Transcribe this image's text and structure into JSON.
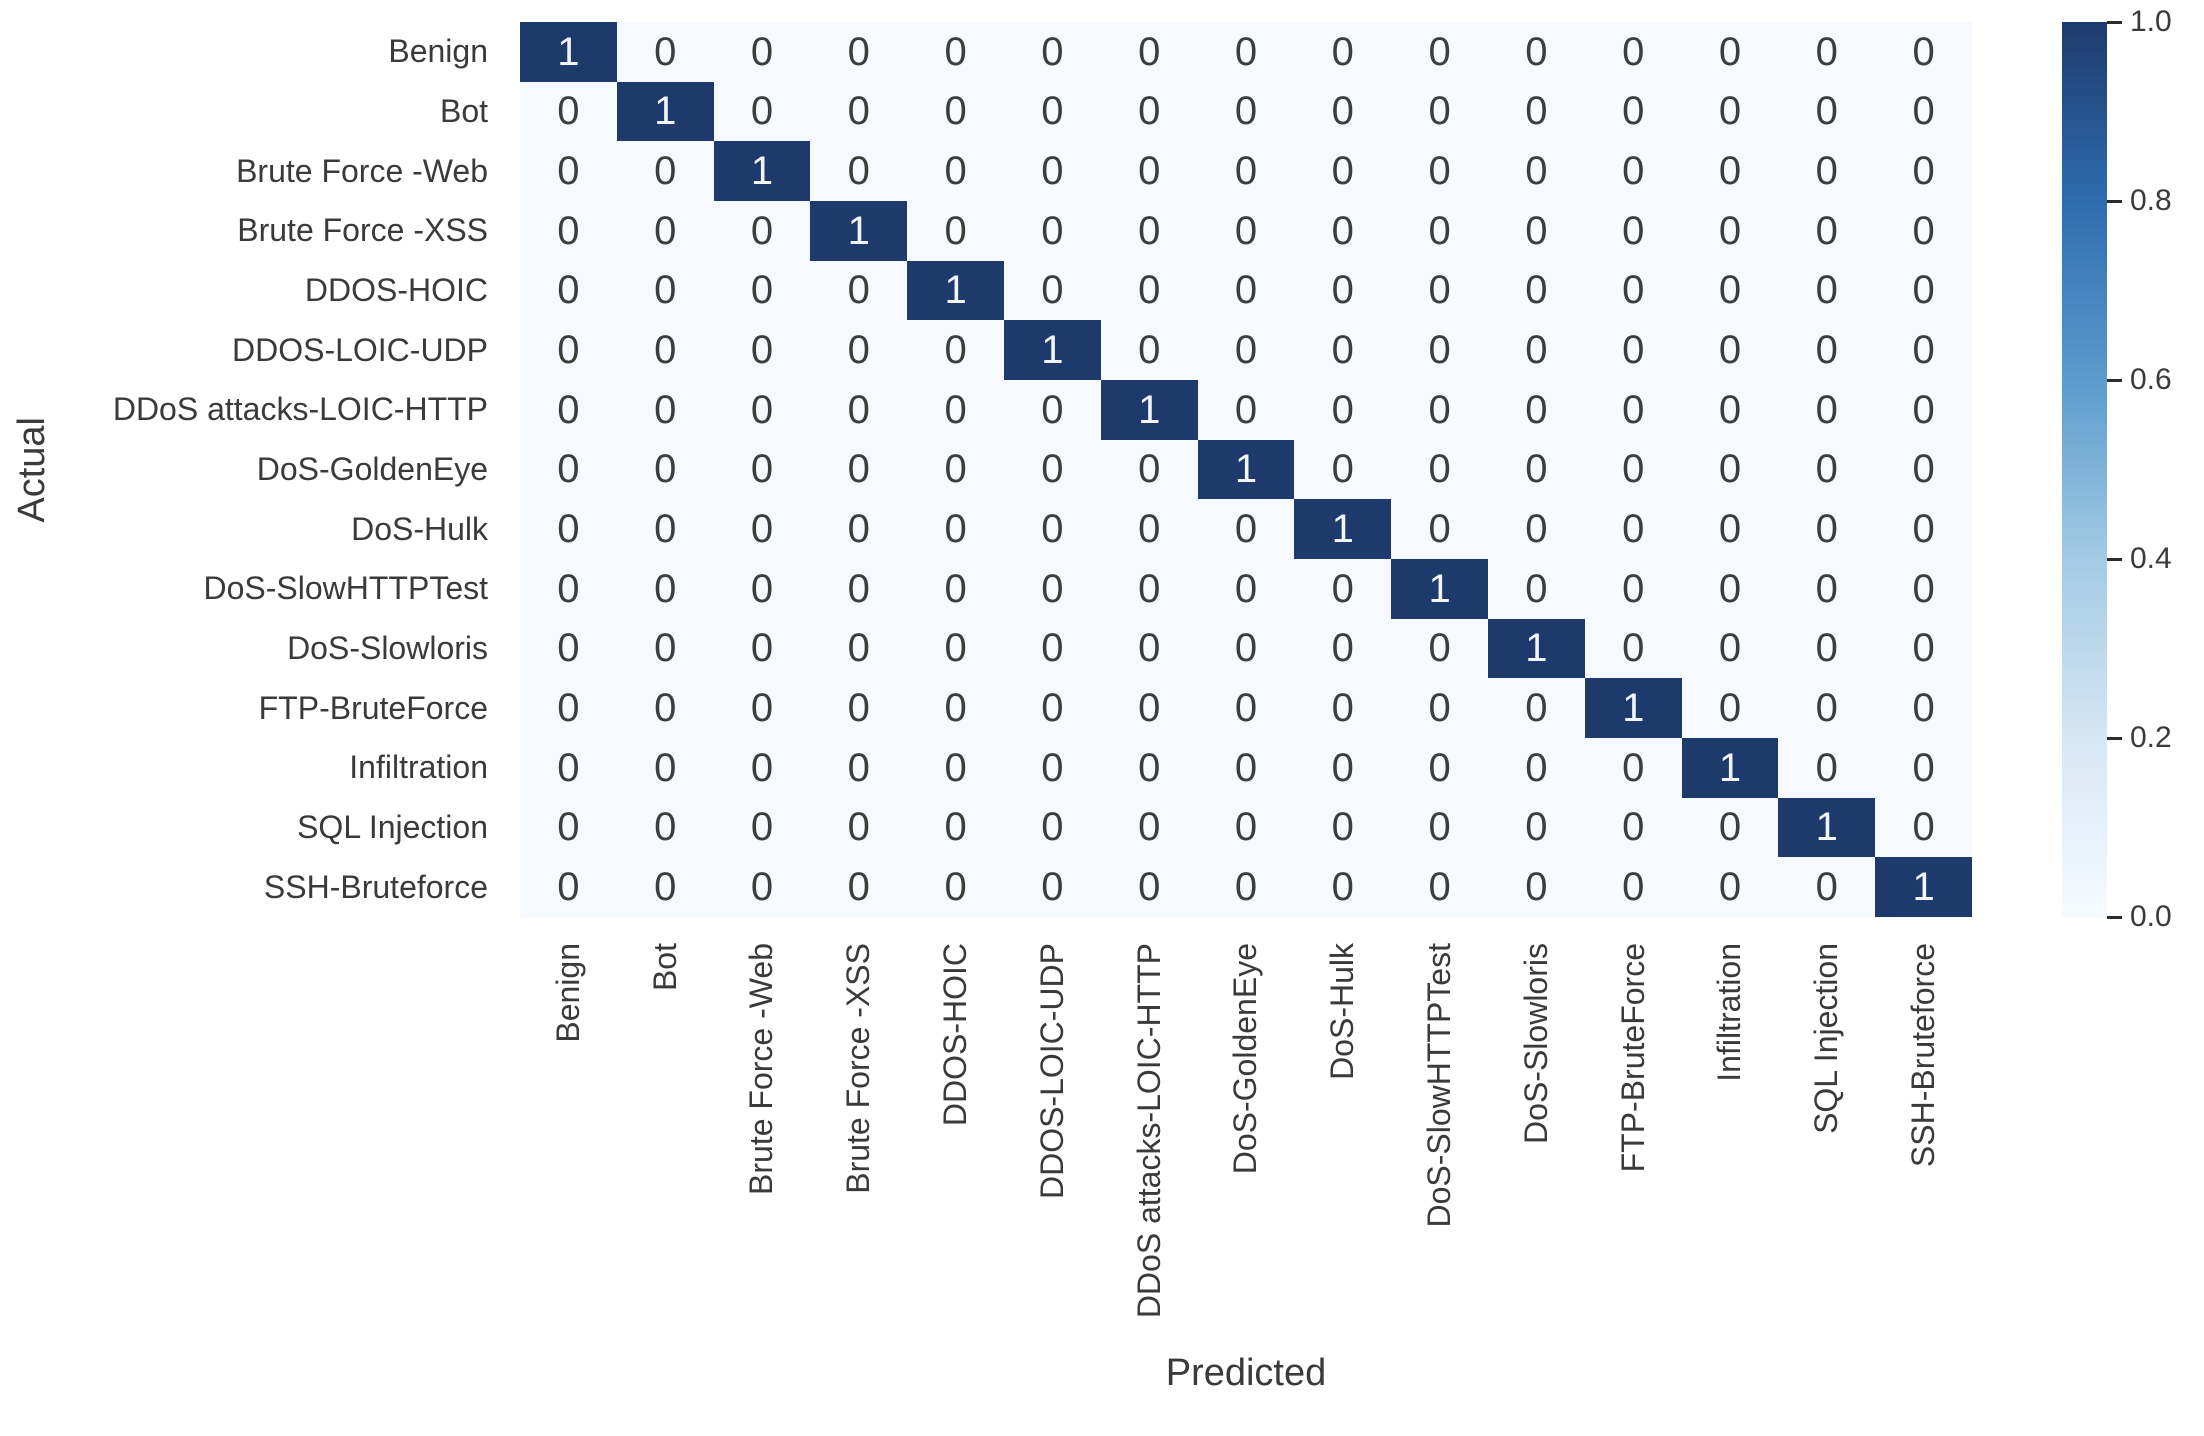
{
  "chart_data": {
    "type": "heatmap",
    "title": "",
    "xlabel": "Predicted",
    "ylabel": "Actual",
    "categories": [
      "Benign",
      "Bot",
      "Brute Force -Web",
      "Brute Force -XSS",
      "DDOS-HOIC",
      "DDOS-LOIC-UDP",
      "DDoS attacks-LOIC-HTTP",
      "DoS-GoldenEye",
      "DoS-Hulk",
      "DoS-SlowHTTPTest",
      "DoS-Slowloris",
      "FTP-BruteForce",
      "Infiltration",
      "SQL Injection",
      "SSH-Bruteforce"
    ],
    "matrix": [
      [
        1,
        0,
        0,
        0,
        0,
        0,
        0,
        0,
        0,
        0,
        0,
        0,
        0,
        0,
        0
      ],
      [
        0,
        1,
        0,
        0,
        0,
        0,
        0,
        0,
        0,
        0,
        0,
        0,
        0,
        0,
        0
      ],
      [
        0,
        0,
        1,
        0,
        0,
        0,
        0,
        0,
        0,
        0,
        0,
        0,
        0,
        0,
        0
      ],
      [
        0,
        0,
        0,
        1,
        0,
        0,
        0,
        0,
        0,
        0,
        0,
        0,
        0,
        0,
        0
      ],
      [
        0,
        0,
        0,
        0,
        1,
        0,
        0,
        0,
        0,
        0,
        0,
        0,
        0,
        0,
        0
      ],
      [
        0,
        0,
        0,
        0,
        0,
        1,
        0,
        0,
        0,
        0,
        0,
        0,
        0,
        0,
        0
      ],
      [
        0,
        0,
        0,
        0,
        0,
        0,
        1,
        0,
        0,
        0,
        0,
        0,
        0,
        0,
        0
      ],
      [
        0,
        0,
        0,
        0,
        0,
        0,
        0,
        1,
        0,
        0,
        0,
        0,
        0,
        0,
        0
      ],
      [
        0,
        0,
        0,
        0,
        0,
        0,
        0,
        0,
        1,
        0,
        0,
        0,
        0,
        0,
        0
      ],
      [
        0,
        0,
        0,
        0,
        0,
        0,
        0,
        0,
        0,
        1,
        0,
        0,
        0,
        0,
        0
      ],
      [
        0,
        0,
        0,
        0,
        0,
        0,
        0,
        0,
        0,
        0,
        1,
        0,
        0,
        0,
        0
      ],
      [
        0,
        0,
        0,
        0,
        0,
        0,
        0,
        0,
        0,
        0,
        0,
        1,
        0,
        0,
        0
      ],
      [
        0,
        0,
        0,
        0,
        0,
        0,
        0,
        0,
        0,
        0,
        0,
        0,
        1,
        0,
        0
      ],
      [
        0,
        0,
        0,
        0,
        0,
        0,
        0,
        0,
        0,
        0,
        0,
        0,
        0,
        1,
        0
      ],
      [
        0,
        0,
        0,
        0,
        0,
        0,
        0,
        0,
        0,
        0,
        0,
        0,
        0,
        0,
        1
      ]
    ],
    "value_range": [
      0.0,
      1.0
    ],
    "colormap": "Blues",
    "grid": false,
    "legend_position": "right-colorbar",
    "colorbar_ticks": [
      "1.0",
      "0.8",
      "0.6",
      "0.4",
      "0.2",
      "0.0"
    ],
    "colors": {
      "cell_high": "#1e3a6c",
      "cell_low": "#f6f9fd",
      "annot_on_dark": "#f2f4f8",
      "annot_on_light": "#3d3d3d",
      "tick_label": "#3a3a3a",
      "axis_title": "#3a3a3a",
      "colorbar_gradient": [
        "#1e3a6c",
        "#2e6cb0",
        "#5b9bcd",
        "#a3cbe4",
        "#d6e6f4",
        "#f7fbff"
      ]
    }
  }
}
